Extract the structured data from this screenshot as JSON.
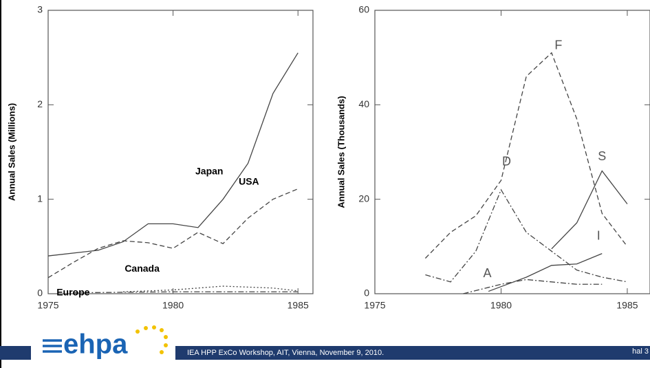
{
  "chart_data": [
    {
      "type": "line",
      "ylabel": "Annual Sales   (Millions)",
      "xlim": [
        1975,
        1985.6
      ],
      "ylim": [
        0,
        3
      ],
      "xticks": [
        1975,
        1980,
        1985
      ],
      "yticks": [
        0,
        1,
        2,
        3
      ],
      "series": [
        {
          "name": "Japan",
          "color": "#444444",
          "line_style": "solid",
          "x": [
            1975,
            1977,
            1978,
            1979,
            1980,
            1981,
            1982,
            1983,
            1984,
            1985
          ],
          "values": [
            0.4,
            0.46,
            0.55,
            0.74,
            0.74,
            0.7,
            1.0,
            1.38,
            2.12,
            2.55
          ]
        },
        {
          "name": "USA",
          "color": "#444444",
          "line_style": "dashed",
          "x": [
            1975,
            1976,
            1977,
            1978,
            1979,
            1980,
            1981,
            1982,
            1983,
            1984,
            1985
          ],
          "values": [
            0.17,
            0.33,
            0.48,
            0.56,
            0.54,
            0.48,
            0.65,
            0.53,
            0.8,
            1.0,
            1.11
          ]
        },
        {
          "name": "Europe",
          "color": "#444444",
          "line_style": "dashdot",
          "x": [
            1976,
            1980,
            1985
          ],
          "values": [
            0.01,
            0.02,
            0.02
          ]
        },
        {
          "name": "Canada",
          "color": "#444444",
          "line_style": "dotted",
          "x": [
            1978,
            1980,
            1982,
            1984,
            1985
          ],
          "values": [
            0.02,
            0.04,
            0.08,
            0.06,
            0.03
          ]
        }
      ]
    },
    {
      "type": "line",
      "ylabel": "Annual Sales   (Thousands)",
      "xlim": [
        1975,
        1985.9
      ],
      "ylim": [
        0,
        60
      ],
      "xticks": [
        1975,
        1980,
        1985
      ],
      "yticks": [
        0,
        20,
        40,
        60
      ],
      "series": [
        {
          "name": "F",
          "color": "#444444",
          "line_style": "dashed",
          "x": [
            1977,
            1978,
            1979,
            1980,
            1981,
            1982,
            1983,
            1984,
            1985
          ],
          "values": [
            7.5,
            13,
            16.5,
            24,
            46,
            51,
            37,
            17,
            10
          ]
        },
        {
          "name": "D",
          "color": "#444444",
          "line_style": "dashdot",
          "x": [
            1977,
            1978,
            1979,
            1980,
            1981,
            1982,
            1983,
            1984,
            1985
          ],
          "values": [
            4,
            2.5,
            9,
            22,
            13,
            9,
            5,
            3.5,
            2.5
          ]
        },
        {
          "name": "S",
          "color": "#444444",
          "line_style": "solid",
          "x": [
            1982,
            1983,
            1984,
            1985
          ],
          "values": [
            9.5,
            15,
            26,
            19
          ]
        },
        {
          "name": "I",
          "color": "#444444",
          "line_style": "solid",
          "x": [
            1979.5,
            1980,
            1981,
            1982,
            1983,
            1984
          ],
          "values": [
            0.5,
            1.5,
            3.5,
            6,
            6.3,
            8.5
          ]
        },
        {
          "name": "A",
          "color": "#444444",
          "line_style": "dashdot",
          "x": [
            1978.5,
            1980,
            1981,
            1982,
            1983,
            1984
          ],
          "values": [
            0,
            2,
            3,
            2.5,
            2,
            2
          ]
        }
      ]
    }
  ],
  "footer": {
    "logo": "ehpa",
    "caption": "IEA HPP ExCo Workshop, AIT, Vienna, November 9, 2010.",
    "page": "hal 3"
  }
}
